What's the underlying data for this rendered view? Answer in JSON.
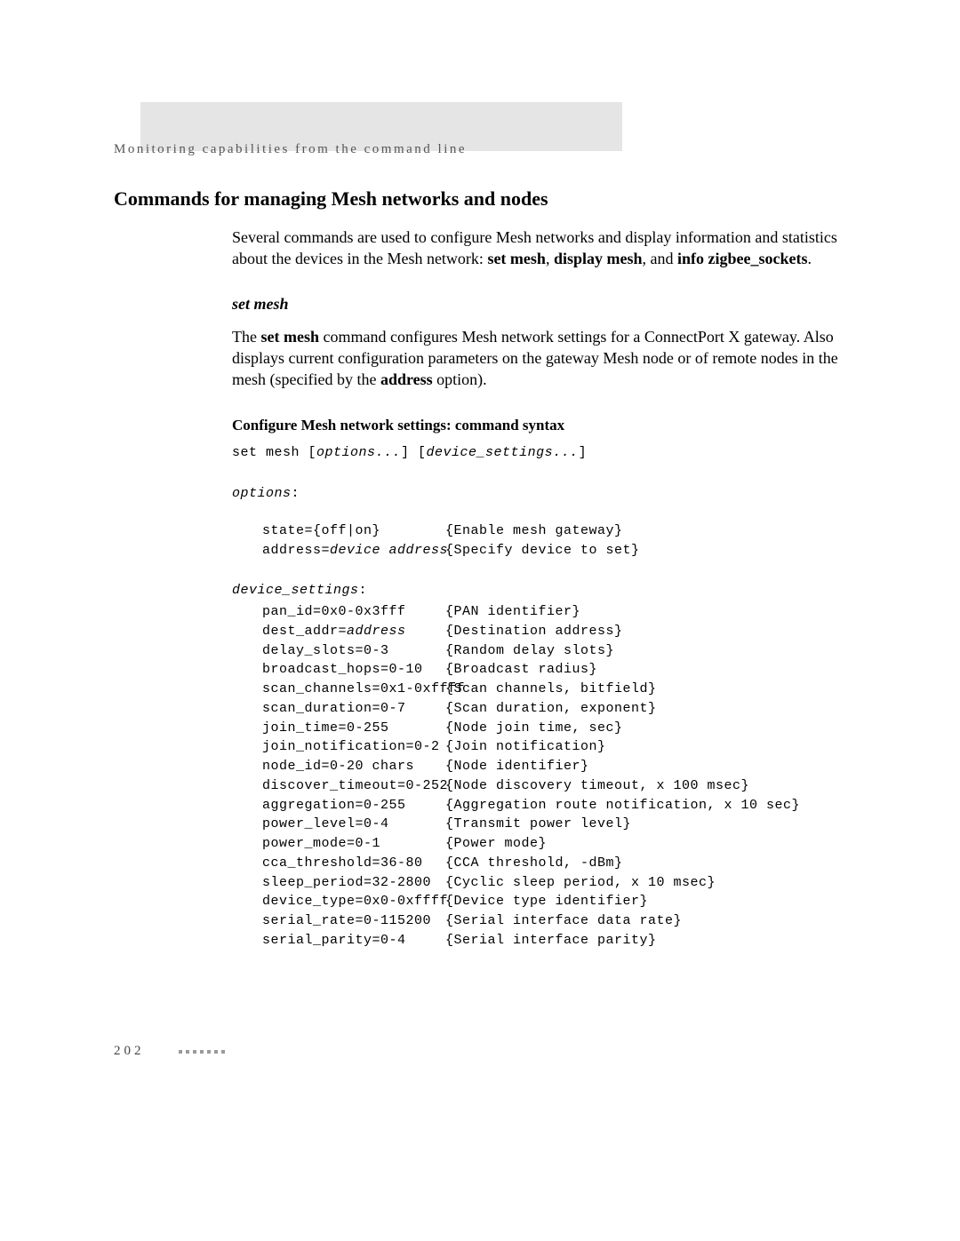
{
  "header": {
    "running_head": "Monitoring capabilities from the command line"
  },
  "title": "Commands for managing Mesh networks and nodes",
  "intro": {
    "prefix": "Several commands are used to configure Mesh networks and display information and statistics about the devices in the Mesh network: ",
    "cmd1": "set mesh",
    "sep1": ", ",
    "cmd2": "display mesh",
    "sep2": ", and ",
    "cmd3": "info zigbee_sockets",
    "suffix": "."
  },
  "section": {
    "heading": "set mesh",
    "para_pre": "The ",
    "para_b1": "set mesh",
    "para_mid": " command configures Mesh network settings for a ConnectPort X gateway. Also displays current configuration parameters on the gateway Mesh node or of remote nodes in the mesh (specified by the ",
    "para_b2": "address",
    "para_post": " option).",
    "syntax_heading": "Configure Mesh network settings: command syntax",
    "syntax_cmd": "set mesh [",
    "syntax_opts": "options...",
    "syntax_mid": "] [",
    "syntax_dev": "device_settings...",
    "syntax_end": "]",
    "options_label": "options",
    "colon": ":",
    "device_label": "device_settings"
  },
  "options": [
    {
      "key_plain": "state={off|on}",
      "key_italic": "",
      "desc": "{Enable mesh gateway}"
    },
    {
      "key_plain": "address=",
      "key_italic": "device address",
      "desc": "{Specify device to set}"
    }
  ],
  "device_settings": [
    {
      "key_plain": "pan_id=0x0-0x3fff",
      "key_italic": "",
      "desc": "{PAN identifier}"
    },
    {
      "key_plain": "dest_addr=",
      "key_italic": "address",
      "desc": "{Destination address}"
    },
    {
      "key_plain": "delay_slots=0-3",
      "key_italic": "",
      "desc": "{Random delay slots}"
    },
    {
      "key_plain": "broadcast_hops=0-10",
      "key_italic": "",
      "desc": "{Broadcast radius}"
    },
    {
      "key_plain": "scan_channels=0x1-0xffff",
      "key_italic": "",
      "desc": "{Scan channels, bitfield}"
    },
    {
      "key_plain": "scan_duration=0-7",
      "key_italic": "",
      "desc": "{Scan duration, exponent}"
    },
    {
      "key_plain": "join_time=0-255",
      "key_italic": "",
      "desc": "{Node join time, sec}"
    },
    {
      "key_plain": "join_notification=0-2",
      "key_italic": "",
      "desc": "{Join notification}"
    },
    {
      "key_plain": "node_id=0-20 chars",
      "key_italic": "",
      "desc": "{Node identifier}"
    },
    {
      "key_plain": "discover_timeout=0-252",
      "key_italic": "",
      "desc": "{Node discovery timeout, x 100 msec}"
    },
    {
      "key_plain": "aggregation=0-255",
      "key_italic": "",
      "desc": "{Aggregation route notification, x 10 sec}"
    },
    {
      "key_plain": "power_level=0-4",
      "key_italic": "",
      "desc": "{Transmit power level}"
    },
    {
      "key_plain": "power_mode=0-1",
      "key_italic": "",
      "desc": "{Power mode}"
    },
    {
      "key_plain": "cca_threshold=36-80",
      "key_italic": "",
      "desc": "{CCA threshold, -dBm}"
    },
    {
      "key_plain": "sleep_period=32-2800",
      "key_italic": "",
      "desc": "{Cyclic sleep period, x 10 msec}"
    },
    {
      "key_plain": "device_type=0x0-0xffff",
      "key_italic": "",
      "desc": "{Device type identifier}"
    },
    {
      "key_plain": "serial_rate=0-115200",
      "key_italic": "",
      "desc": "{Serial interface data rate}"
    },
    {
      "key_plain": "serial_parity=0-4",
      "key_italic": "",
      "desc": "{Serial interface parity}"
    }
  ],
  "footer": {
    "page_number": "202"
  }
}
